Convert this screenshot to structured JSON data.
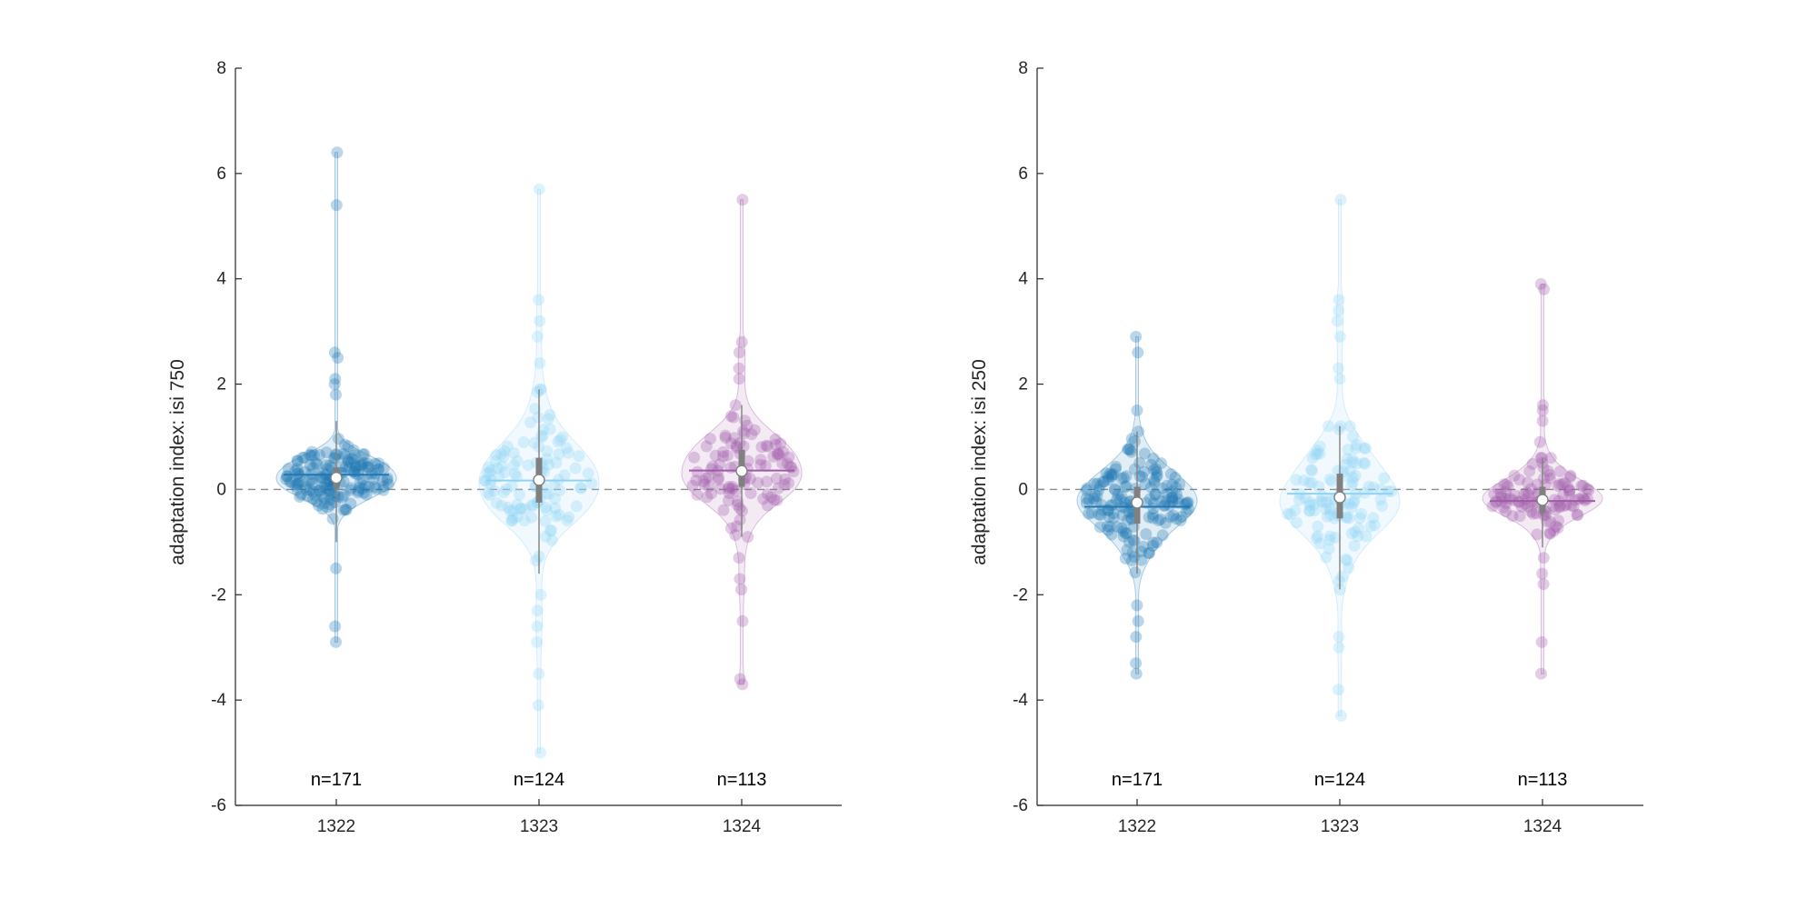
{
  "chart_data": [
    {
      "type": "violin",
      "ylabel": "adaptation index: isi 750",
      "ylim": [
        -6,
        8
      ],
      "yticks": [
        -6,
        -4,
        -2,
        0,
        2,
        4,
        6,
        8
      ],
      "reference_line": 0,
      "categories": [
        "1322",
        "1323",
        "1324"
      ],
      "groups": [
        {
          "category": "1322",
          "n_label": "n=171",
          "n": 171,
          "color": "#1f78b4",
          "median": 0.22,
          "mean": 0.28,
          "q1": 0.02,
          "q3": 0.42,
          "whisker_low": -1.0,
          "whisker_high": 1.3,
          "min": -2.9,
          "max": 6.4,
          "outliers": [
            6.4,
            5.4,
            2.6,
            2.5,
            2.1,
            2.0,
            1.8,
            -1.5,
            -2.6,
            -2.9
          ]
        },
        {
          "category": "1323",
          "n_label": "n=124",
          "n": 124,
          "color": "#8fd3f4",
          "median": 0.18,
          "mean": 0.17,
          "q1": -0.25,
          "q3": 0.6,
          "whisker_low": -1.6,
          "whisker_high": 1.9,
          "min": -5.0,
          "max": 5.7,
          "outliers": [
            5.7,
            3.6,
            3.2,
            2.9,
            2.4,
            -2.0,
            -2.3,
            -2.6,
            -2.9,
            -3.5,
            -4.1,
            -5.0
          ]
        },
        {
          "category": "1324",
          "n_label": "n=113",
          "n": 113,
          "color": "#a05aa8",
          "median": 0.35,
          "mean": 0.36,
          "q1": 0.05,
          "q3": 0.75,
          "whisker_low": -0.9,
          "whisker_high": 1.6,
          "min": -3.7,
          "max": 5.5,
          "outliers": [
            5.5,
            2.8,
            2.6,
            2.3,
            2.1,
            -1.3,
            -1.7,
            -1.9,
            -2.5,
            -3.6,
            -3.7
          ]
        }
      ]
    },
    {
      "type": "violin",
      "ylabel": "adaptation index: isi 250",
      "ylim": [
        -6,
        8
      ],
      "yticks": [
        -6,
        -4,
        -2,
        0,
        2,
        4,
        6,
        8
      ],
      "reference_line": 0,
      "categories": [
        "1322",
        "1323",
        "1324"
      ],
      "groups": [
        {
          "category": "1322",
          "n_label": "n=171",
          "n": 171,
          "color": "#1f78b4",
          "median": -0.25,
          "mean": -0.33,
          "q1": -0.65,
          "q3": 0.05,
          "whisker_low": -1.6,
          "whisker_high": 1.1,
          "min": -3.5,
          "max": 2.9,
          "outliers": [
            2.9,
            2.6,
            1.5,
            -2.2,
            -2.5,
            -2.8,
            -3.3,
            -3.5
          ]
        },
        {
          "category": "1323",
          "n_label": "n=124",
          "n": 124,
          "color": "#8fd3f4",
          "median": -0.15,
          "mean": -0.08,
          "q1": -0.55,
          "q3": 0.3,
          "whisker_low": -1.9,
          "whisker_high": 1.2,
          "min": -4.3,
          "max": 5.5,
          "outliers": [
            5.5,
            3.6,
            3.4,
            3.2,
            2.9,
            2.3,
            2.1,
            -2.8,
            -3.0,
            -3.8,
            -4.3
          ]
        },
        {
          "category": "1324",
          "n_label": "n=113",
          "n": 113,
          "color": "#a05aa8",
          "median": -0.2,
          "mean": -0.22,
          "q1": -0.45,
          "q3": 0.05,
          "whisker_low": -1.1,
          "whisker_high": 0.6,
          "min": -3.5,
          "max": 3.9,
          "outliers": [
            3.9,
            3.8,
            1.6,
            1.5,
            1.3,
            0.9,
            -1.3,
            -1.6,
            -1.8,
            -2.9,
            -3.5
          ]
        }
      ]
    }
  ]
}
